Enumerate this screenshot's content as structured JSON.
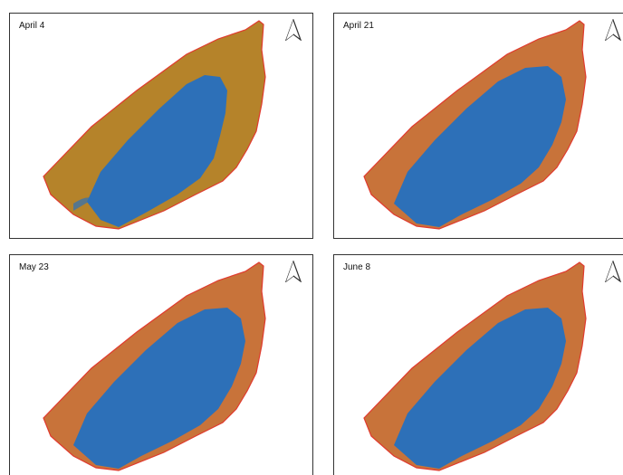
{
  "panels": [
    {
      "date_label": "April 4",
      "land_color": "#b5832a"
    },
    {
      "date_label": "April 21",
      "land_color": "#c8733a"
    },
    {
      "date_label": "May 23",
      "land_color": "#c8733a"
    },
    {
      "date_label": "June 8",
      "land_color": "#c8733a"
    }
  ],
  "legend_colors": {
    "water": "#2d70b8",
    "boundary": "#e03a2e"
  },
  "icons": {
    "north_arrow": "north-arrow-icon"
  }
}
